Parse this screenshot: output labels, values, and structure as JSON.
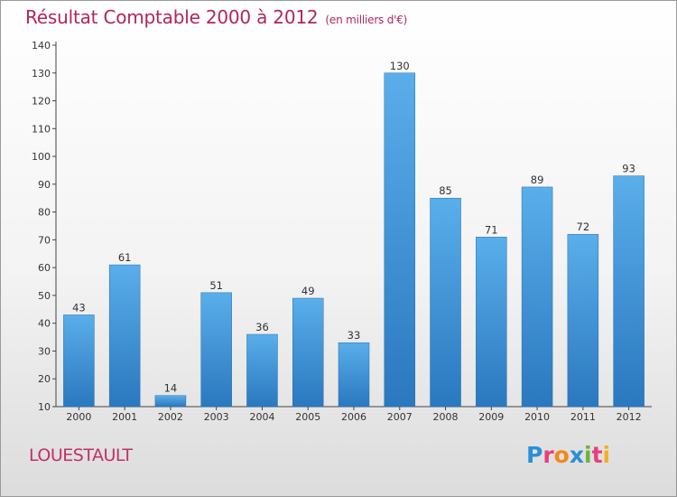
{
  "header": {
    "title": "Résultat Comptable 2000 à 2012",
    "subtitle": "(en milliers d'€)"
  },
  "footer": {
    "commune": "LOUESTAULT",
    "logo_text": "Proxiti",
    "logo_colors": [
      "#2a8fd6",
      "#e8407a",
      "#f08a1c",
      "#2a8fd6",
      "#6db33f",
      "#e8407a",
      "#f0b020"
    ]
  },
  "chart_data": {
    "type": "bar",
    "title": "Résultat Comptable 2000 à 2012",
    "subtitle": "(en milliers d'€)",
    "xlabel": "",
    "ylabel": "",
    "categories": [
      "2000",
      "2001",
      "2002",
      "2003",
      "2004",
      "2005",
      "2006",
      "2007",
      "2008",
      "2009",
      "2010",
      "2011",
      "2012"
    ],
    "values": [
      43,
      61,
      14,
      51,
      36,
      49,
      33,
      130,
      85,
      71,
      89,
      72,
      93
    ],
    "ylim": [
      10,
      140
    ],
    "yticks": [
      10,
      20,
      30,
      40,
      50,
      60,
      70,
      80,
      90,
      100,
      110,
      120,
      130,
      140
    ],
    "grid": false,
    "bar_color": "#3a8fd4"
  }
}
